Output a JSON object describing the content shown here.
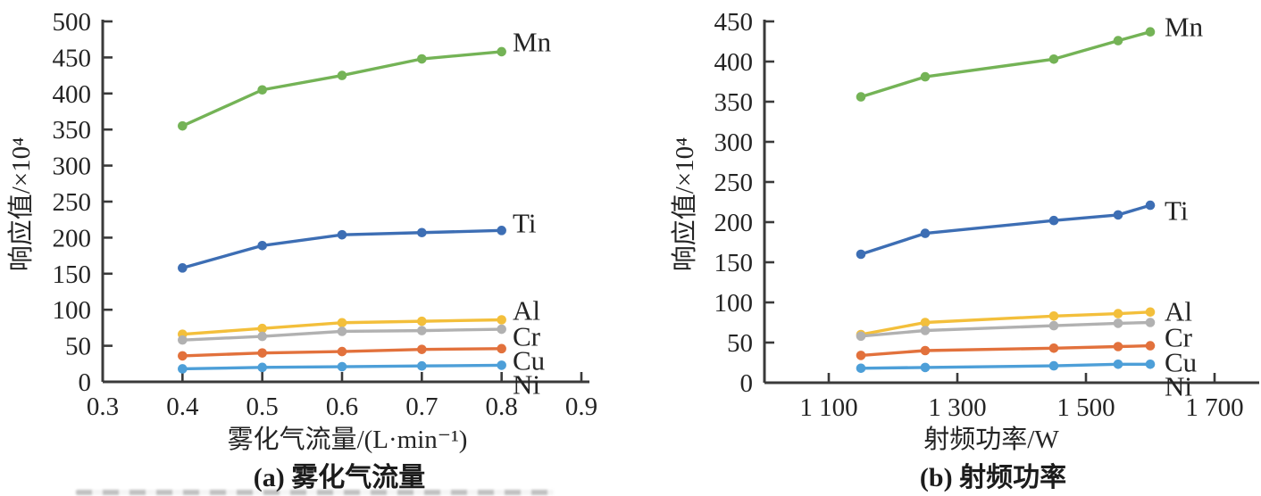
{
  "figure": {
    "text_color": "#242424",
    "axis_color": "#3a3a3a",
    "background": "#ffffff"
  },
  "chart_data": [
    {
      "type": "line",
      "title": "(a) 雾化气流量",
      "xlabel": "雾化气流量/(L·min⁻¹)",
      "ylabel": "响应值/×10⁴",
      "xlim": [
        0.3,
        0.9
      ],
      "ylim": [
        0,
        500
      ],
      "grid": false,
      "legend_position": "right-end-of-line",
      "x": [
        0.4,
        0.5,
        0.6,
        0.7,
        0.8
      ],
      "x_ticks": [
        {
          "v": 0.3,
          "t": "0.3"
        },
        {
          "v": 0.4,
          "t": "0.4"
        },
        {
          "v": 0.5,
          "t": "0.5"
        },
        {
          "v": 0.6,
          "t": "0.6"
        },
        {
          "v": 0.7,
          "t": "0.7"
        },
        {
          "v": 0.8,
          "t": "0.8"
        },
        {
          "v": 0.9,
          "t": "0.9"
        }
      ],
      "y_ticks": [
        {
          "v": 0,
          "t": "0"
        },
        {
          "v": 50,
          "t": "50"
        },
        {
          "v": 100,
          "t": "100"
        },
        {
          "v": 150,
          "t": "150"
        },
        {
          "v": 200,
          "t": "200"
        },
        {
          "v": 250,
          "t": "250"
        },
        {
          "v": 300,
          "t": "300"
        },
        {
          "v": 350,
          "t": "350"
        },
        {
          "v": 400,
          "t": "400"
        },
        {
          "v": 450,
          "t": "450"
        },
        {
          "v": 500,
          "t": "500"
        }
      ],
      "series": [
        {
          "name": "Mn",
          "color": "#74b356",
          "values": [
            355,
            405,
            425,
            448,
            458
          ]
        },
        {
          "name": "Ti",
          "color": "#3d6eb4",
          "values": [
            158,
            189,
            204,
            207,
            210
          ]
        },
        {
          "name": "Al",
          "color": "#f3bf3b",
          "values": [
            66,
            74,
            82,
            84,
            86
          ]
        },
        {
          "name": "Cr",
          "color": "#b1b1b1",
          "values": [
            58,
            63,
            70,
            71,
            73
          ]
        },
        {
          "name": "Cu",
          "color": "#e2713c",
          "values": [
            36,
            40,
            42,
            45,
            46
          ]
        },
        {
          "name": "Ni",
          "color": "#4d9fd8",
          "values": [
            18,
            20,
            21,
            22,
            23
          ]
        }
      ]
    },
    {
      "type": "line",
      "title": "(b) 射频功率",
      "xlabel": "射频功率/W",
      "ylabel": "响应值/×10⁴",
      "xlim": [
        1000,
        1770
      ],
      "ylim": [
        0,
        450
      ],
      "grid": false,
      "legend_position": "right-end-of-line",
      "x": [
        1150,
        1250,
        1450,
        1550,
        1600
      ],
      "x_ticks": [
        {
          "v": 1100,
          "t": "1 100"
        },
        {
          "v": 1300,
          "t": "1 300"
        },
        {
          "v": 1500,
          "t": "1 500"
        },
        {
          "v": 1700,
          "t": "1 700"
        }
      ],
      "y_ticks": [
        {
          "v": 0,
          "t": "0"
        },
        {
          "v": 50,
          "t": "50"
        },
        {
          "v": 100,
          "t": "100"
        },
        {
          "v": 150,
          "t": "150"
        },
        {
          "v": 200,
          "t": "200"
        },
        {
          "v": 250,
          "t": "250"
        },
        {
          "v": 300,
          "t": "300"
        },
        {
          "v": 350,
          "t": "350"
        },
        {
          "v": 400,
          "t": "400"
        },
        {
          "v": 450,
          "t": "450"
        }
      ],
      "series": [
        {
          "name": "Mn",
          "color": "#74b356",
          "values": [
            356,
            381,
            403,
            426,
            437
          ]
        },
        {
          "name": "Ti",
          "color": "#3d6eb4",
          "values": [
            160,
            186,
            202,
            209,
            221
          ]
        },
        {
          "name": "Al",
          "color": "#f3bf3b",
          "values": [
            60,
            75,
            83,
            86,
            88
          ]
        },
        {
          "name": "Cr",
          "color": "#b1b1b1",
          "values": [
            58,
            65,
            71,
            74,
            75
          ]
        },
        {
          "name": "Cu",
          "color": "#e2713c",
          "values": [
            34,
            40,
            43,
            45,
            46
          ]
        },
        {
          "name": "Ni",
          "color": "#4d9fd8",
          "values": [
            18,
            19,
            21,
            23,
            23
          ]
        }
      ]
    }
  ]
}
